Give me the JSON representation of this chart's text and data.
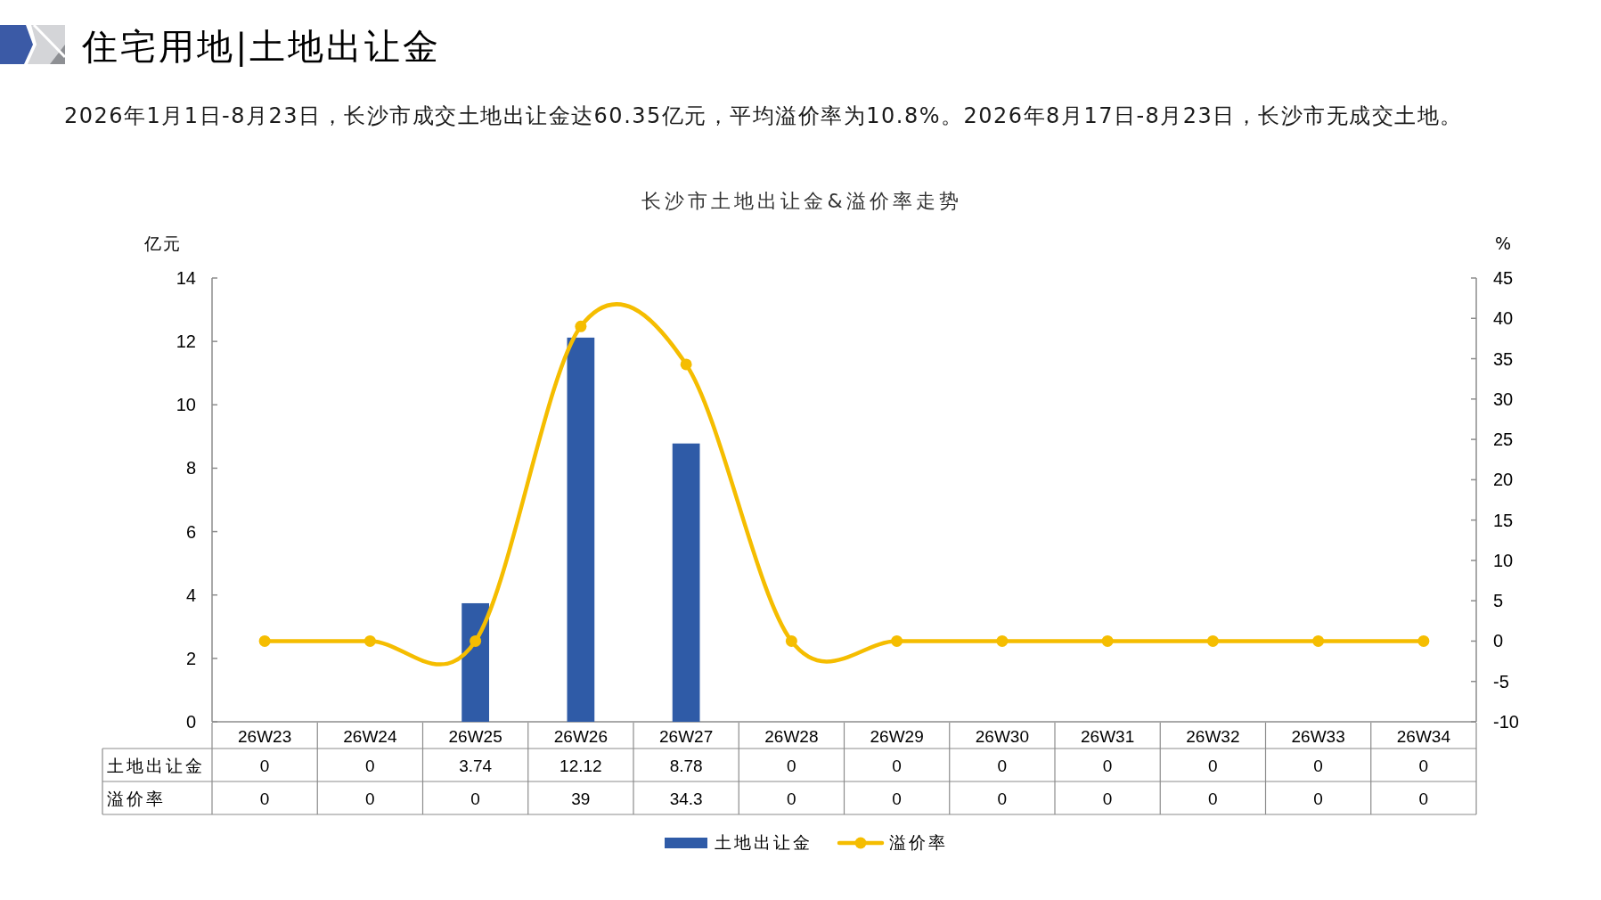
{
  "chart_data": {
    "type": "bar",
    "title": "住宅用地|土地出让金",
    "subtitle": "2026年1月1日-8月23日，长沙市成交土地出让金达60.35亿元，平均溢价率为10.8%。2026年8月17日-8月23日，长沙市无成交土地。",
    "annotations": [
      "长沙市土地出让金&溢价率走势"
    ],
    "ylabel": "亿元",
    "y2label": "%",
    "categories": [
      "26W23",
      "26W24",
      "26W25",
      "26W26",
      "26W27",
      "26W28",
      "26W29",
      "26W30",
      "26W31",
      "26W32",
      "26W33",
      "26W34"
    ],
    "series": [
      {
        "name": "土地出让金",
        "color": "#2f5ba7",
        "values": [
          0,
          0,
          3.74,
          12.12,
          8.78,
          0,
          0,
          0,
          0,
          0,
          0,
          0
        ]
      },
      {
        "name": "溢价率",
        "type": "line",
        "axis": "y2",
        "color": "#f5bd00",
        "marker": "circle",
        "values": [
          0,
          0,
          0,
          39,
          34.3,
          0,
          0,
          0,
          0,
          0,
          0,
          0
        ]
      }
    ],
    "ylim": [
      0,
      14
    ],
    "yticks": [
      0,
      2,
      4,
      6,
      8,
      10,
      12,
      14
    ],
    "y2lim": [
      -10,
      45
    ],
    "y2ticks": [
      -10,
      -5,
      0,
      5,
      10,
      15,
      20,
      25,
      30,
      35,
      40,
      45
    ],
    "data_labels": true,
    "legend": "bottom"
  }
}
